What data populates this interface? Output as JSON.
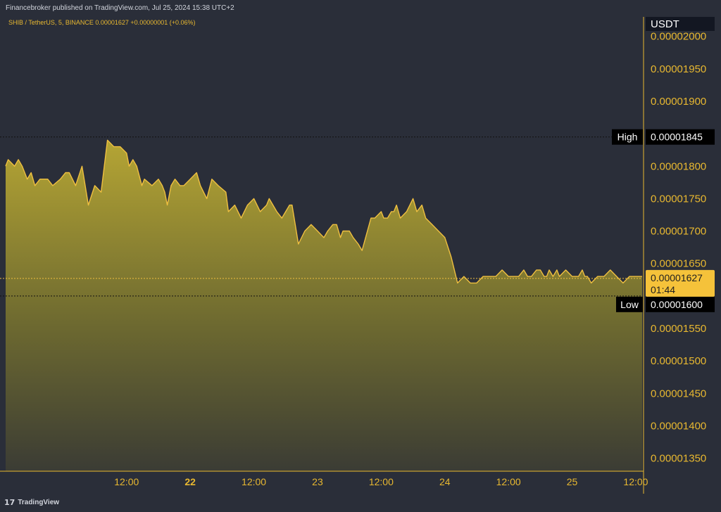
{
  "header": {
    "publish_note": "Financebroker published on TradingView.com, Jul 25, 2024 15:38 UTC+2"
  },
  "footer": {
    "logo_text": "TradingView"
  },
  "chart_data": {
    "type": "area",
    "symbol_info": "SHIB / TetherUS, 5, BINANCE  0.00001627  +0.00000001 (+0.06%)",
    "currency": "USDT",
    "ylim": [
      1.33e-05,
      2.03e-05
    ],
    "y_ticks": [
      "0.00002000",
      "0.00001950",
      "0.00001900",
      "0.00001800",
      "0.00001750",
      "0.00001700",
      "0.00001650",
      "0.00001550",
      "0.00001500",
      "0.00001450",
      "0.00001400",
      "0.00001350"
    ],
    "x_ticks": [
      {
        "label": "12:00",
        "x": 0.5,
        "bold": false
      },
      {
        "label": "22",
        "x": 1.0,
        "bold": true
      },
      {
        "label": "12:00",
        "x": 1.5,
        "bold": false
      },
      {
        "label": "23",
        "x": 2.0,
        "bold": false
      },
      {
        "label": "12:00",
        "x": 2.5,
        "bold": false
      },
      {
        "label": "24",
        "x": 3.0,
        "bold": false
      },
      {
        "label": "12:00",
        "x": 3.5,
        "bold": false
      },
      {
        "label": "25",
        "x": 4.0,
        "bold": false
      },
      {
        "label": "12:00",
        "x": 4.5,
        "bold": false
      }
    ],
    "x_range": [
      -0.45,
      4.55
    ],
    "high": {
      "label": "High",
      "value": 1.845e-05,
      "text": "0.00001845"
    },
    "low": {
      "label": "Low",
      "value": 1.6e-05,
      "text": "0.00001600"
    },
    "last": {
      "value": 1.627e-05,
      "text": "0.00001627",
      "countdown": "01:44"
    },
    "line_color": "#f0c040",
    "x": [
      -0.45,
      -0.43,
      -0.38,
      -0.35,
      -0.32,
      -0.28,
      -0.25,
      -0.22,
      -0.18,
      -0.12,
      -0.08,
      -0.02,
      0.02,
      0.05,
      0.1,
      0.15,
      0.2,
      0.25,
      0.3,
      0.35,
      0.4,
      0.45,
      0.5,
      0.52,
      0.55,
      0.58,
      0.62,
      0.64,
      0.7,
      0.75,
      0.78,
      0.8,
      0.82,
      0.85,
      0.88,
      0.92,
      0.95,
      1.0,
      1.05,
      1.08,
      1.13,
      1.17,
      1.22,
      1.28,
      1.3,
      1.35,
      1.4,
      1.45,
      1.5,
      1.55,
      1.6,
      1.62,
      1.68,
      1.72,
      1.78,
      1.8,
      1.85,
      1.9,
      1.95,
      2.0,
      2.05,
      2.08,
      2.12,
      2.15,
      2.18,
      2.2,
      2.25,
      2.28,
      2.32,
      2.35,
      2.42,
      2.45,
      2.5,
      2.52,
      2.55,
      2.58,
      2.6,
      2.62,
      2.65,
      2.7,
      2.75,
      2.78,
      2.82,
      2.85,
      2.9,
      2.95,
      3.0,
      3.05,
      3.1,
      3.15,
      3.2,
      3.25,
      3.3,
      3.35,
      3.4,
      3.45,
      3.5,
      3.55,
      3.58,
      3.62,
      3.65,
      3.68,
      3.72,
      3.75,
      3.78,
      3.8,
      3.82,
      3.85,
      3.88,
      3.9,
      3.95,
      4.0,
      4.05,
      4.08,
      4.1,
      4.12,
      4.15,
      4.2,
      4.25,
      4.3,
      4.35,
      4.4,
      4.45,
      4.5,
      4.52,
      4.55
    ],
    "y": [
      1.8e-05,
      1.81e-05,
      1.8e-05,
      1.81e-05,
      1.8e-05,
      1.78e-05,
      1.79e-05,
      1.77e-05,
      1.78e-05,
      1.78e-05,
      1.77e-05,
      1.78e-05,
      1.79e-05,
      1.79e-05,
      1.77e-05,
      1.8e-05,
      1.74e-05,
      1.77e-05,
      1.76e-05,
      1.84e-05,
      1.83e-05,
      1.83e-05,
      1.82e-05,
      1.8e-05,
      1.81e-05,
      1.8e-05,
      1.77e-05,
      1.78e-05,
      1.77e-05,
      1.78e-05,
      1.77e-05,
      1.76e-05,
      1.74e-05,
      1.77e-05,
      1.78e-05,
      1.77e-05,
      1.77e-05,
      1.78e-05,
      1.79e-05,
      1.77e-05,
      1.75e-05,
      1.78e-05,
      1.77e-05,
      1.76e-05,
      1.73e-05,
      1.74e-05,
      1.72e-05,
      1.74e-05,
      1.75e-05,
      1.73e-05,
      1.74e-05,
      1.75e-05,
      1.73e-05,
      1.72e-05,
      1.74e-05,
      1.74e-05,
      1.68e-05,
      1.7e-05,
      1.71e-05,
      1.7e-05,
      1.69e-05,
      1.7e-05,
      1.71e-05,
      1.71e-05,
      1.69e-05,
      1.7e-05,
      1.7e-05,
      1.69e-05,
      1.68e-05,
      1.67e-05,
      1.72e-05,
      1.72e-05,
      1.73e-05,
      1.72e-05,
      1.72e-05,
      1.73e-05,
      1.73e-05,
      1.74e-05,
      1.72e-05,
      1.73e-05,
      1.75e-05,
      1.73e-05,
      1.74e-05,
      1.72e-05,
      1.71e-05,
      1.7e-05,
      1.69e-05,
      1.66e-05,
      1.62e-05,
      1.63e-05,
      1.62e-05,
      1.62e-05,
      1.63e-05,
      1.63e-05,
      1.63e-05,
      1.64e-05,
      1.63e-05,
      1.63e-05,
      1.63e-05,
      1.64e-05,
      1.63e-05,
      1.63e-05,
      1.64e-05,
      1.64e-05,
      1.63e-05,
      1.63e-05,
      1.64e-05,
      1.63e-05,
      1.64e-05,
      1.63e-05,
      1.64e-05,
      1.63e-05,
      1.63e-05,
      1.64e-05,
      1.63e-05,
      1.63e-05,
      1.62e-05,
      1.63e-05,
      1.63e-05,
      1.64e-05,
      1.63e-05,
      1.62e-05,
      1.63e-05,
      1.63e-05,
      1.63e-05,
      1.63e-05
    ]
  }
}
